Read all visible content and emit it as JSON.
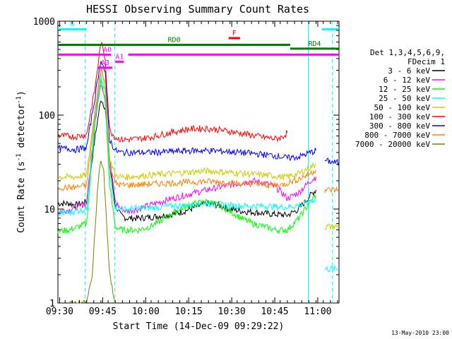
{
  "chart_data": {
    "type": "line",
    "title": "HESSI Observing Summary Count Rates",
    "xlabel": "Start Time (14-Dec-09 09:29:22)",
    "ylabel_prefix": "Count Rate (s",
    "ylabel_sup1": "-1",
    "ylabel_mid": " detector",
    "ylabel_sup2": "-1",
    "ylabel_suffix": ")",
    "ylog": true,
    "ylim": [
      1,
      1000
    ],
    "xlim_minutes": [
      0,
      98
    ],
    "x_units": "minutes after 09:29:22",
    "xticks": [
      {
        "label": "09:30",
        "minutes": 0.6
      },
      {
        "label": "09:45",
        "minutes": 15.6
      },
      {
        "label": "10:00",
        "minutes": 30.6
      },
      {
        "label": "10:15",
        "minutes": 45.6
      },
      {
        "label": "10:30",
        "minutes": 60.6
      },
      {
        "label": "10:45",
        "minutes": 75.6
      },
      {
        "label": "11:00",
        "minutes": 90.6
      }
    ],
    "yticks": [
      {
        "label": "1",
        "value": 1
      },
      {
        "label": "10",
        "value": 10
      },
      {
        "label": "100",
        "value": 100
      },
      {
        "label": "1000",
        "value": 1000
      }
    ],
    "legend": {
      "title_lines": [
        "Det 1,3,4,5,6,9,",
        "FDecim 1"
      ],
      "placement": "right"
    },
    "series": [
      {
        "name": "3 - 6 keV",
        "color": "#000000",
        "x": [
          0,
          4,
          6,
          10,
          13,
          15,
          16.5,
          18,
          20,
          22,
          24,
          28,
          32,
          36,
          40,
          44,
          48,
          52,
          56,
          60,
          64,
          68,
          72,
          76,
          78,
          80,
          84,
          88,
          90,
          91.5,
          93,
          95,
          98
        ],
        "y": [
          11.5,
          11.5,
          11,
          12,
          60,
          150,
          120,
          30,
          11,
          8.5,
          8.0,
          8.0,
          8.2,
          8.5,
          8.8,
          9.5,
          10.5,
          11.5,
          11,
          10,
          9.5,
          9.3,
          9.0,
          8.8,
          8.7,
          8.6,
          10,
          14,
          16,
          null,
          null,
          null,
          null
        ]
      },
      {
        "name": "6 - 12 keV",
        "color": "#ff00ff",
        "x": [
          0,
          4,
          6,
          10,
          13,
          15,
          16.5,
          18,
          20,
          22,
          24,
          28,
          32,
          36,
          40,
          44,
          48,
          52,
          56,
          60,
          64,
          68,
          72,
          76,
          78,
          80,
          84,
          88,
          90,
          91.5,
          93,
          95,
          98
        ],
        "y": [
          9.5,
          9.8,
          10.5,
          11.5,
          90,
          220,
          160,
          35,
          12,
          10,
          9.5,
          10,
          11,
          12,
          13,
          14,
          15,
          16,
          17,
          18,
          19,
          20,
          19,
          17,
          15,
          13,
          15,
          20,
          22,
          null,
          null,
          null,
          null
        ]
      },
      {
        "name": "12 - 25 keV",
        "color": "#00ff00",
        "x": [
          0,
          4,
          6,
          10,
          13,
          15,
          16.5,
          18,
          20,
          22,
          24,
          28,
          32,
          36,
          40,
          44,
          48,
          52,
          56,
          60,
          64,
          68,
          72,
          76,
          78,
          80,
          84,
          88,
          90,
          91.5,
          93,
          95,
          98
        ],
        "y": [
          5.8,
          6.0,
          6.3,
          7.0,
          90,
          230,
          140,
          18,
          6.5,
          6.0,
          6.0,
          6.0,
          6.5,
          7.5,
          9.0,
          10.5,
          11.5,
          12,
          11,
          9.5,
          8.0,
          7.0,
          6.5,
          6.0,
          6.0,
          6.0,
          8.0,
          12,
          14,
          null,
          null,
          null,
          null
        ]
      },
      {
        "name": "25 - 50 keV",
        "color": "#00ffff",
        "x": [
          0,
          4,
          6,
          10,
          13,
          15,
          16.5,
          18,
          20,
          22,
          24,
          28,
          32,
          36,
          40,
          44,
          48,
          52,
          56,
          60,
          64,
          68,
          72,
          76,
          78,
          80,
          84,
          88,
          90,
          91.5,
          93,
          95,
          98
        ],
        "y": [
          9.0,
          9.2,
          9.5,
          10,
          100,
          260,
          170,
          22,
          10.5,
          10,
          10,
          10.2,
          10.3,
          10.5,
          10.8,
          11,
          11.3,
          11.5,
          11.2,
          11,
          10.8,
          10.8,
          10.8,
          10.6,
          10.5,
          10.5,
          11,
          12,
          13,
          null,
          2.3,
          2.3,
          2.3
        ]
      },
      {
        "name": "50 - 100 keV",
        "color": "#cccc00",
        "x": [
          0,
          4,
          6,
          10,
          13,
          15,
          16.5,
          18,
          20,
          22,
          24,
          28,
          32,
          36,
          40,
          44,
          48,
          52,
          56,
          60,
          64,
          68,
          72,
          76,
          78,
          80,
          84,
          88,
          90,
          91.5,
          93,
          95,
          98
        ],
        "y": [
          22,
          22,
          22,
          23,
          120,
          300,
          200,
          35,
          23,
          22,
          22,
          22.5,
          23,
          23.5,
          24,
          24.5,
          25,
          25.5,
          25,
          24.5,
          24,
          23.5,
          23,
          22.5,
          22,
          22,
          24,
          28,
          30,
          null,
          6.5,
          6.5,
          6.5
        ]
      },
      {
        "name": "100 - 300 keV",
        "color": "#ff0000",
        "x": [
          0,
          4,
          6,
          10,
          13,
          15,
          16.5,
          18,
          20,
          22,
          24,
          28,
          32,
          36,
          40,
          44,
          48,
          52,
          56,
          60,
          64,
          68,
          72,
          76,
          78,
          80,
          84,
          88,
          90,
          91.5,
          93,
          95,
          98
        ],
        "y": [
          60,
          60,
          59,
          62,
          200,
          600,
          400,
          70,
          58,
          55,
          55,
          56,
          58,
          62,
          66,
          70,
          72,
          72,
          70,
          67,
          64,
          61,
          58,
          56,
          58,
          65,
          null,
          null,
          null,
          null,
          null,
          null,
          null
        ]
      },
      {
        "name": "300 - 800 keV",
        "color": "#0000ff",
        "x": [
          0,
          4,
          6,
          10,
          13,
          15,
          16.5,
          18,
          20,
          22,
          24,
          28,
          32,
          36,
          40,
          44,
          48,
          52,
          56,
          60,
          64,
          68,
          72,
          76,
          78,
          80,
          84,
          88,
          90,
          91.5,
          93,
          95,
          98
        ],
        "y": [
          44,
          44,
          43,
          45,
          160,
          400,
          280,
          55,
          42,
          40,
          40,
          40,
          40,
          40.5,
          41,
          41.5,
          42,
          42,
          41.5,
          41,
          40,
          39,
          38,
          37,
          36,
          35,
          36,
          40,
          42,
          null,
          33,
          32,
          31
        ]
      },
      {
        "name": "800 - 7000 keV",
        "color": "#ff8000",
        "x": [
          0,
          4,
          6,
          10,
          13,
          15,
          16.5,
          18,
          20,
          22,
          24,
          28,
          32,
          36,
          40,
          44,
          48,
          52,
          56,
          60,
          64,
          68,
          72,
          76,
          78,
          80,
          84,
          88,
          90,
          91.5,
          93,
          95,
          98
        ],
        "y": [
          17,
          17,
          17,
          18,
          110,
          330,
          220,
          30,
          19,
          18,
          18,
          18.2,
          18.5,
          18.7,
          19,
          19.2,
          19.5,
          19.7,
          19.5,
          19,
          18.7,
          18.5,
          18.2,
          18,
          18,
          19,
          21,
          24,
          26,
          null,
          16,
          16,
          16
        ]
      },
      {
        "name": "7000 - 20000 keV",
        "color": "#808000",
        "x": [
          2,
          4,
          6,
          10,
          12,
          14,
          15,
          16,
          18,
          20
        ],
        "y": [
          null,
          1.0,
          1.0,
          1.0,
          2.0,
          20,
          32,
          25,
          2.0,
          1.0
        ]
      }
    ],
    "attenuator_events": [
      {
        "label": "N",
        "minutes_start": 0,
        "minutes_end": 10,
        "value": 820,
        "color": "#00ffff"
      },
      {
        "label": "",
        "minutes_start": 92,
        "minutes_end": 98,
        "value": 820,
        "color": "#00ffff"
      },
      {
        "label": "F",
        "minutes_start": 59.5,
        "minutes_end": 63.5,
        "value": 660,
        "color": "#ff0000"
      },
      {
        "label": "RD0",
        "minutes_start": 0,
        "minutes_end": 81,
        "value": 560,
        "color": "#008000"
      },
      {
        "label": "RD4",
        "minutes_start": 81,
        "minutes_end": 98,
        "value": 510,
        "color": "#008000"
      },
      {
        "label": "",
        "minutes_start": 0,
        "minutes_end": 16,
        "value": 440,
        "color": "#ff00ff"
      },
      {
        "label": "A0",
        "minutes_start": 16,
        "minutes_end": 18.5,
        "value": 440,
        "color": "#ff00ff"
      },
      {
        "label": "",
        "minutes_start": 24.5,
        "minutes_end": 98,
        "value": 440,
        "color": "#ff00ff"
      },
      {
        "label": "A1",
        "minutes_start": 20,
        "minutes_end": 23,
        "value": 370,
        "color": "#ff00ff"
      },
      {
        "label": "A3",
        "minutes_start": 14,
        "minutes_end": 19,
        "value": 320,
        "color": "#ff00ff"
      }
    ],
    "vertical_markers": [
      {
        "minutes": 9.5,
        "color": "#00ffff",
        "style": "dashed"
      },
      {
        "minutes": 19.8,
        "color": "#00ffff",
        "style": "dashed"
      },
      {
        "minutes": 87.3,
        "color": "#00ffff",
        "style": "solid"
      },
      {
        "minutes": 95.7,
        "color": "#00ffff",
        "style": "dashed"
      }
    ],
    "footer": "13-May-2010 23:00"
  }
}
